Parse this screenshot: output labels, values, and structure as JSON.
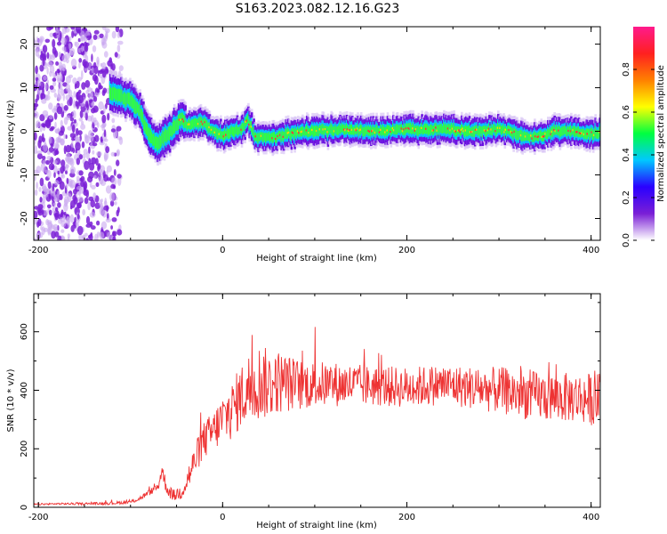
{
  "figure_title": "S163.2023.082.12.16.G23",
  "colors": {
    "snr_line": "#ee3333",
    "spectrum_peak": "#ff3333",
    "scatter": "#7a1fd6"
  },
  "chart_data": [
    {
      "type": "heatmap",
      "xlabel": "Height of straight line (km)",
      "ylabel": "Frequency (Hz)",
      "xlim": [
        -205,
        410
      ],
      "ylim": [
        -25,
        24
      ],
      "xticks": [
        -200,
        0,
        200,
        400
      ],
      "yticks": [
        -20,
        -10,
        0,
        10,
        20
      ],
      "ytick_labels": [
        "-20",
        "-10",
        "0",
        "10",
        "20"
      ],
      "grid": false,
      "colorbar": {
        "label": "Normalized spectral amplitude",
        "range": [
          0,
          1
        ],
        "ticks": [
          0.0,
          0.2,
          0.4,
          0.6,
          0.8
        ],
        "tick_labels": [
          "0.0",
          "0.2",
          "0.4",
          "0.6",
          "0.8"
        ],
        "colormap": [
          "#ffffff",
          "#7a1fd6",
          "#2a00ff",
          "#00c8ff",
          "#00ff40",
          "#ffff00",
          "#ff8000",
          "#ff2020",
          "#ff1a8c"
        ]
      },
      "ridge": {
        "x": [
          -122,
          -110,
          -100,
          -90,
          -85,
          -78,
          -70,
          -62,
          -55,
          -45,
          -38,
          -20,
          -10,
          0,
          10,
          20,
          28,
          35,
          45,
          55,
          65,
          75,
          85,
          100,
          130,
          160,
          200,
          240,
          280,
          300,
          320,
          340,
          360,
          380,
          400,
          410
        ],
        "y": [
          9,
          8,
          7,
          5,
          2,
          -1,
          -3,
          -1,
          0,
          3,
          1.5,
          2,
          0,
          -1,
          0,
          0.5,
          2.5,
          -1,
          -1.5,
          -1.5,
          -1,
          -0.5,
          0,
          0,
          0.5,
          0,
          0.5,
          0.5,
          0,
          0.5,
          -0.5,
          -1.5,
          0,
          0,
          -0.5,
          -0.5
        ]
      }
    },
    {
      "type": "line",
      "xlabel": "Height of straight line (km)",
      "ylabel": "SNR (10 * v/v)",
      "xlim": [
        -205,
        410
      ],
      "ylim": [
        0,
        730
      ],
      "xticks": [
        -200,
        0,
        200,
        400
      ],
      "yticks": [
        0,
        200,
        400,
        600
      ],
      "grid": false,
      "series": [
        {
          "x": [
            -205,
            -180,
            -150,
            -120,
            -100,
            -90,
            -80,
            -70,
            -66,
            -62,
            -58,
            -52,
            -45,
            -40,
            -35,
            -30,
            -25,
            -20,
            -10,
            0,
            10,
            20,
            30,
            40,
            50,
            60,
            80,
            100,
            130,
            160,
            200,
            240,
            280,
            300,
            320,
            340,
            360,
            380,
            400,
            410
          ],
          "values": [
            10,
            12,
            12,
            14,
            18,
            30,
            50,
            70,
            130,
            80,
            50,
            40,
            55,
            80,
            120,
            160,
            200,
            230,
            260,
            300,
            330,
            380,
            410,
            430,
            420,
            430,
            420,
            420,
            420,
            415,
            410,
            420,
            405,
            400,
            390,
            380,
            375,
            375,
            370,
            370
          ],
          "noise_amplitude": [
            3,
            3,
            4,
            5,
            6,
            8,
            10,
            15,
            30,
            25,
            20,
            20,
            30,
            40,
            50,
            55,
            60,
            65,
            70,
            90,
            100,
            110,
            130,
            130,
            120,
            110,
            90,
            80,
            75,
            70,
            70,
            70,
            75,
            80,
            85,
            85,
            85,
            85,
            90,
            90
          ]
        }
      ]
    }
  ]
}
